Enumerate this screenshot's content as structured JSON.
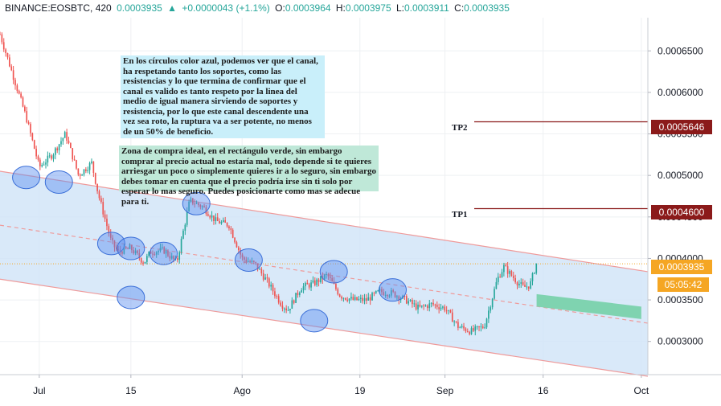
{
  "header": {
    "symbol": "BINANCE:EOSBTC, 420",
    "price": "0.0003935",
    "change": "+0.0000043 (+1.1%)",
    "open_label": "O:",
    "open": "0.0003964",
    "high_label": "H:",
    "high": "0.0003975",
    "low_label": "L:",
    "low": "0.0003911",
    "close_label": "C:",
    "close": "0.0003935"
  },
  "annotations": {
    "note1": "En los círculos color azul, podemos ver que el canal, ha respetando tanto los soportes, como las resistencias y lo que termina de confirmar que el canal es valido es tanto respeto por la linea del medio de igual manera sirviendo de soportes y resistencia, por lo que este canal descendente una vez sea roto, la ruptura va a ser potente, no menos de un 50% de beneficio.",
    "note2": "Zona de compra ideal, en el rectángulo verde, sin embargo comprar al precio actual no estaría mal, todo depende si te quieres arriesgar un poco o simplemente quieres ir a lo seguro, sin embargo debes tomar en cuenta que el precio podría irse sin ti solo por esperar lo mas seguro. Puedes posicionarte como mas se adecue para ti.",
    "tp2": "TP2",
    "tp1": "TP1"
  },
  "badges": {
    "tp2_price": "0.0005646",
    "tp1_price": "0.0004600",
    "last_price": "0.0003935",
    "countdown": "05:05:42"
  },
  "colors": {
    "up": "#26a69a",
    "down": "#ef5350",
    "tp_line": "#8b1a1a",
    "last_price": "#f5a623",
    "channel_fill": "#cfe3f7",
    "channel_line": "#ef9a9a",
    "circle": "#5b8def",
    "buy_zone": "#7fd3b0"
  },
  "chart_data": {
    "type": "candlestick",
    "y_ticks": [
      "0.0006500",
      "0.0006000",
      "0.0005500",
      "0.0005000",
      "0.0004500",
      "0.0004000",
      "0.0003500",
      "0.0003000"
    ],
    "y_tick_values": [
      0.00065,
      0.0006,
      0.00055,
      0.0005,
      0.00045,
      0.0004,
      0.00035,
      0.0003
    ],
    "ylim": [
      0.00026,
      0.00069
    ],
    "x_ticks": [
      "Jul",
      "15",
      "Ago",
      "19",
      "Sep",
      "16",
      "Oct"
    ],
    "x_tick_dates": [
      "2019-07-01",
      "2019-07-15",
      "2019-08-01",
      "2019-08-19",
      "2019-09-01",
      "2019-09-16",
      "2019-10-01"
    ],
    "xlim": [
      "2019-06-25",
      "2019-10-02"
    ],
    "tp2": 0.0005646,
    "tp1": 0.00046,
    "last_price": 0.0003935,
    "close_path": [
      [
        "2019-06-25",
        0.00067
      ],
      [
        "2019-06-27",
        0.00062
      ],
      [
        "2019-06-29",
        0.00057
      ],
      [
        "2019-07-01",
        0.00051
      ],
      [
        "2019-07-03",
        0.000525
      ],
      [
        "2019-07-05",
        0.00055
      ],
      [
        "2019-07-07",
        0.0005
      ],
      [
        "2019-07-09",
        0.000515
      ],
      [
        "2019-07-10",
        0.000478
      ],
      [
        "2019-07-12",
        0.00042
      ],
      [
        "2019-07-13",
        0.000408
      ],
      [
        "2019-07-15",
        0.000412
      ],
      [
        "2019-07-17",
        0.000395
      ],
      [
        "2019-07-18",
        0.000408
      ],
      [
        "2019-07-20",
        0.00041
      ],
      [
        "2019-07-22",
        0.000395
      ],
      [
        "2019-07-24",
        0.00047
      ],
      [
        "2019-07-26",
        0.000462
      ],
      [
        "2019-07-28",
        0.000445
      ],
      [
        "2019-07-30",
        0.00044
      ],
      [
        "2019-08-01",
        0.0004
      ],
      [
        "2019-08-03",
        0.000393
      ],
      [
        "2019-08-05",
        0.00037
      ],
      [
        "2019-08-07",
        0.000345
      ],
      [
        "2019-08-08",
        0.000338
      ],
      [
        "2019-08-10",
        0.000365
      ],
      [
        "2019-08-12",
        0.00037
      ],
      [
        "2019-08-14",
        0.00038
      ],
      [
        "2019-08-16",
        0.000355
      ],
      [
        "2019-08-18",
        0.00035
      ],
      [
        "2019-08-20",
        0.00035
      ],
      [
        "2019-08-22",
        0.00036
      ],
      [
        "2019-08-24",
        0.000358
      ],
      [
        "2019-08-26",
        0.00035
      ],
      [
        "2019-08-28",
        0.00034
      ],
      [
        "2019-08-30",
        0.000345
      ],
      [
        "2019-09-01",
        0.00034
      ],
      [
        "2019-09-03",
        0.000318
      ],
      [
        "2019-09-05",
        0.000312
      ],
      [
        "2019-09-07",
        0.000318
      ],
      [
        "2019-09-09",
        0.000375
      ],
      [
        "2019-09-10",
        0.00039
      ],
      [
        "2019-09-12",
        0.000372
      ],
      [
        "2019-09-13",
        0.000365
      ],
      [
        "2019-09-14",
        0.000368
      ],
      [
        "2019-09-15",
        0.000395
      ]
    ],
    "channel": {
      "upper": [
        [
          "2019-06-25",
          0.000505
        ],
        [
          "2019-10-02",
          0.000384
        ]
      ],
      "middle": [
        [
          "2019-06-25",
          0.00044
        ],
        [
          "2019-10-02",
          0.000322
        ]
      ],
      "lower": [
        [
          "2019-06-25",
          0.000375
        ],
        [
          "2019-10-02",
          0.000258
        ]
      ]
    },
    "buy_zone": {
      "x0": "2019-09-15",
      "x1": "2019-10-01",
      "y_top_left": 0.000357,
      "y_bottom_left": 0.000342,
      "y_top_right": 0.000342,
      "y_bottom_right": 0.000327
    },
    "touch_points": [
      [
        "2019-06-29",
        0.0004975
      ],
      [
        "2019-07-04",
        0.000492
      ],
      [
        "2019-07-12",
        0.000418
      ],
      [
        "2019-07-15",
        0.000412
      ],
      [
        "2019-07-15",
        0.000353
      ],
      [
        "2019-07-20",
        0.000406
      ],
      [
        "2019-07-25",
        0.000466
      ],
      [
        "2019-08-02",
        0.000398
      ],
      [
        "2019-08-12",
        0.000325
      ],
      [
        "2019-08-15",
        0.000384
      ],
      [
        "2019-08-24",
        0.000362
      ]
    ]
  }
}
